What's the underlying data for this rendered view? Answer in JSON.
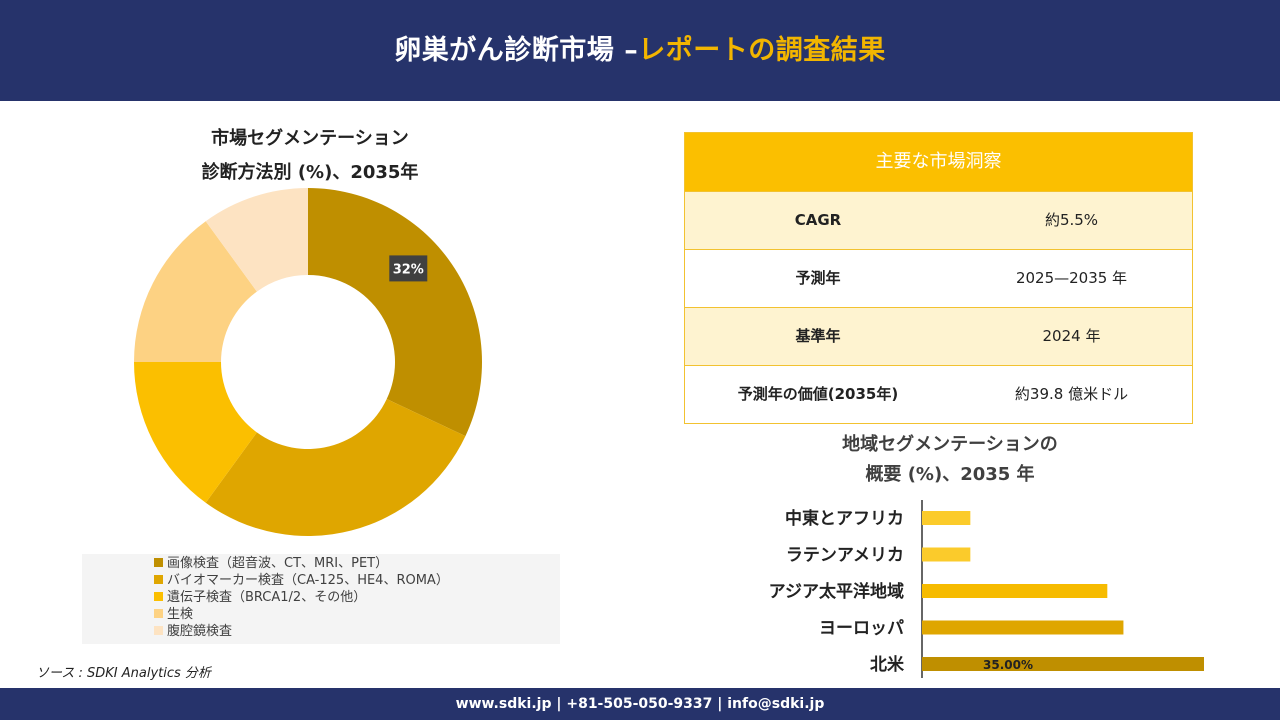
{
  "header": {
    "title_main": "卵巣がん診断市場 –",
    "title_accent": "レポートの調査結果"
  },
  "donut": {
    "title_line1": "市場セグメンテーション",
    "title_line2": "診断方法別 (%)、2035年"
  },
  "legend": {
    "items": [
      {
        "label": "画像検査（超音波、CT、MRI、PET）",
        "color": "#bf8f00"
      },
      {
        "label": "バイオマーカー検査（CA-125、HE4、ROMA）",
        "color": "#dfa600"
      },
      {
        "label": "遺伝子検査（BRCA1/2、その他）",
        "color": "#fbbf00"
      },
      {
        "label": "生検",
        "color": "#fdd283"
      },
      {
        "label": "腹腔鏡検査",
        "color": "#fde3c2"
      }
    ]
  },
  "source": "ソース : SDKI Analytics 分析",
  "insights": {
    "title": "主要な市場洞察",
    "rows": [
      {
        "key": "CAGR",
        "value": "約5.5%"
      },
      {
        "key": "予測年",
        "value": "2025—2035 年"
      },
      {
        "key": "基準年",
        "value": "2024 年"
      },
      {
        "key": "予測年の価値(2035年)",
        "value": "約39.8 億米ドル"
      }
    ]
  },
  "region": {
    "title_line1": "地域セグメンテーションの",
    "title_line2": "概要 (%)、2035 年"
  },
  "chart_data": [
    {
      "type": "pie",
      "title": "市場セグメンテーション 診断方法別 (%)、2035年",
      "categories": [
        "画像検査（超音波、CT、MRI、PET）",
        "バイオマーカー検査（CA-125、HE4、ROMA）",
        "遺伝子検査（BRCA1/2、その他）",
        "生検",
        "腹腔鏡検査"
      ],
      "values": [
        32,
        28,
        15,
        15,
        10
      ],
      "colors": [
        "#bf8f00",
        "#dfa600",
        "#fbbf00",
        "#fdd283",
        "#fde3c2"
      ],
      "data_labels": [
        "32%",
        "",
        "",
        "",
        ""
      ],
      "donut": true,
      "legend": "bottom"
    },
    {
      "type": "bar",
      "orientation": "horizontal",
      "title": "地域セグメンテーションの 概要 (%)、2035 年",
      "categories": [
        "中東とアフリカ",
        "ラテンアメリカ",
        "アジア太平洋地域",
        "ヨーロッパ",
        "北米"
      ],
      "values": [
        6,
        6,
        23,
        25,
        35
      ],
      "colors": [
        "#fbcb2b",
        "#fbcb2b",
        "#f6bb00",
        "#dfa600",
        "#bf8f00"
      ],
      "data_labels": [
        "",
        "",
        "",
        "",
        "35.00%"
      ],
      "xlim": [
        0,
        35
      ]
    }
  ],
  "footer": "www.sdki.jp | +81-505-050-9337 | info@sdki.jp"
}
